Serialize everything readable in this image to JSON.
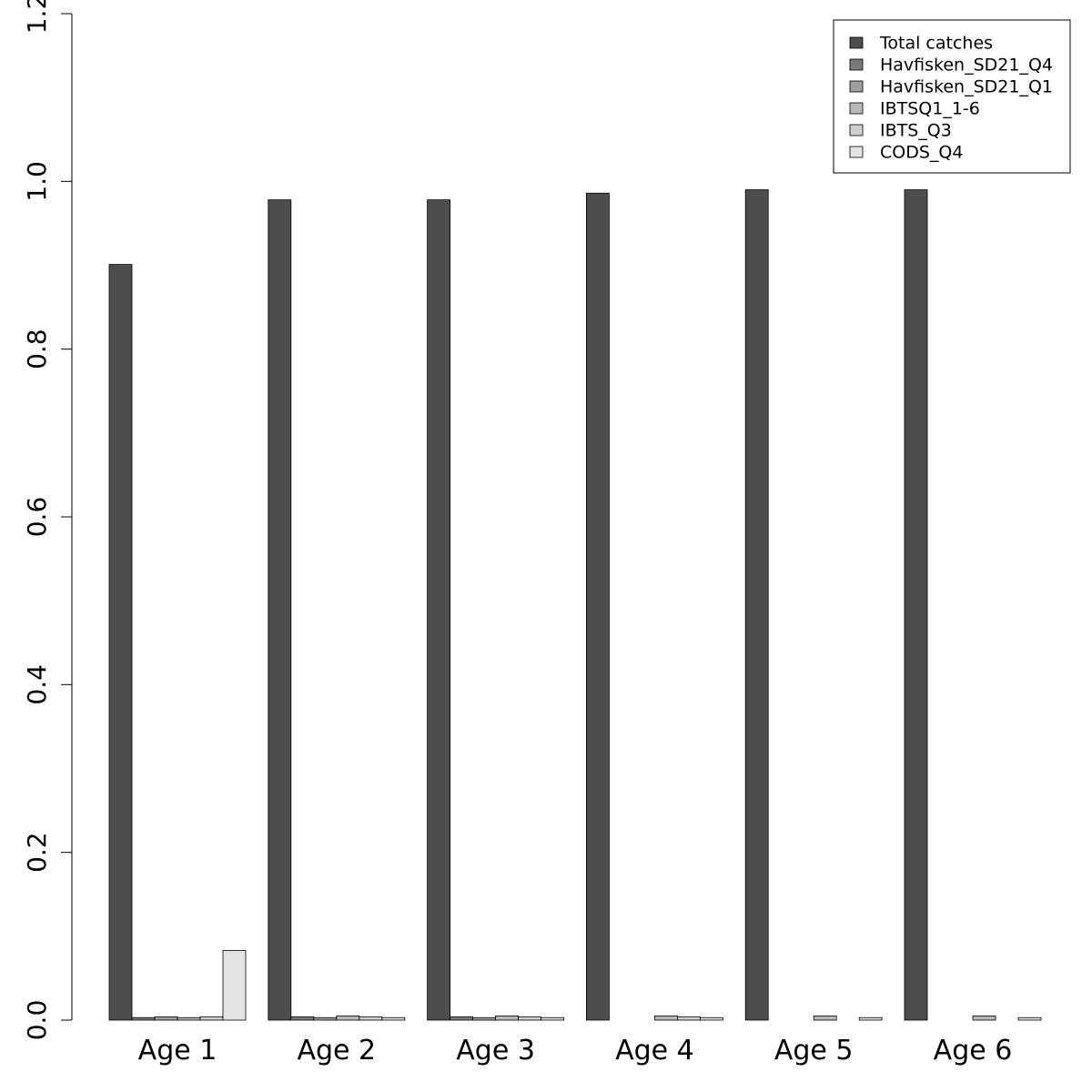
{
  "chart_data": {
    "type": "bar",
    "title": "",
    "xlabel": "",
    "ylabel": "",
    "ylim": [
      0,
      1.2
    ],
    "yticks": [
      "0.0",
      "0.2",
      "0.4",
      "0.6",
      "0.8",
      "1.0",
      "1.2"
    ],
    "categories": [
      "Age 1",
      "Age 2",
      "Age 3",
      "Age 4",
      "Age 5",
      "Age 6"
    ],
    "grid": false,
    "legend_position": "top-right",
    "series": [
      {
        "name": "Total catches",
        "color": "#4d4d4d",
        "values": [
          0.901,
          0.978,
          0.978,
          0.986,
          0.99,
          0.99
        ]
      },
      {
        "name": "Havfisken_SD21_Q4",
        "color": "#7a7a7a",
        "values": [
          0.003,
          0.004,
          0.004,
          0.0,
          0.0,
          0.0
        ]
      },
      {
        "name": "Havfisken_SD21_Q1",
        "color": "#9e9e9e",
        "values": [
          0.004,
          0.003,
          0.003,
          0.0,
          0.0,
          0.0
        ]
      },
      {
        "name": "IBTSQ1_1-6",
        "color": "#b8b8b8",
        "values": [
          0.003,
          0.005,
          0.005,
          0.005,
          0.005,
          0.005
        ]
      },
      {
        "name": "IBTS_Q3",
        "color": "#cfcfcf",
        "values": [
          0.004,
          0.004,
          0.004,
          0.004,
          0.0,
          0.0
        ]
      },
      {
        "name": "CODS_Q4",
        "color": "#e3e3e3",
        "values": [
          0.083,
          0.003,
          0.003,
          0.003,
          0.003,
          0.003
        ]
      }
    ]
  }
}
